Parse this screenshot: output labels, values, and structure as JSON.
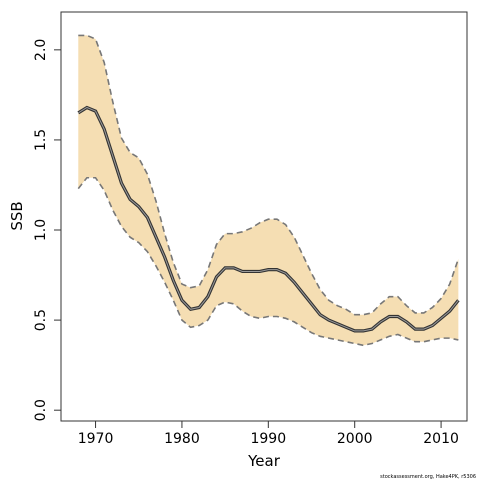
{
  "chart_data": {
    "type": "line",
    "title": "",
    "xlabel": "Year",
    "ylabel": "SSB",
    "xlim": [
      1966,
      2013
    ],
    "ylim": [
      -0.06,
      2.21
    ],
    "xticks": [
      1970,
      1980,
      1990,
      2000,
      2010
    ],
    "xtick_labels": [
      "1970",
      "1980",
      "1990",
      "2000",
      "2010"
    ],
    "yticks": [
      0.0,
      0.5,
      1.0,
      1.5,
      2.0
    ],
    "ytick_labels": [
      "0.0",
      "0.5",
      "1.0",
      "1.5",
      "2.0"
    ],
    "grid": false,
    "x": [
      1968,
      1969,
      1970,
      1971,
      1972,
      1973,
      1974,
      1975,
      1976,
      1977,
      1978,
      1979,
      1980,
      1981,
      1982,
      1983,
      1984,
      1985,
      1986,
      1987,
      1988,
      1989,
      1990,
      1991,
      1992,
      1993,
      1994,
      1995,
      1996,
      1997,
      1998,
      1999,
      2000,
      2001,
      2002,
      2003,
      2004,
      2005,
      2006,
      2007,
      2008,
      2009,
      2010,
      2011,
      2012
    ],
    "series": [
      {
        "role": "median",
        "color": "#333333",
        "values": [
          1.65,
          1.68,
          1.66,
          1.56,
          1.41,
          1.26,
          1.17,
          1.13,
          1.07,
          0.96,
          0.85,
          0.72,
          0.61,
          0.56,
          0.57,
          0.63,
          0.74,
          0.79,
          0.79,
          0.77,
          0.77,
          0.77,
          0.78,
          0.78,
          0.76,
          0.71,
          0.65,
          0.59,
          0.53,
          0.5,
          0.48,
          0.46,
          0.44,
          0.44,
          0.45,
          0.49,
          0.52,
          0.52,
          0.49,
          0.45,
          0.45,
          0.47,
          0.51,
          0.55,
          0.61
        ]
      },
      {
        "role": "upper",
        "color": "#777777",
        "values": [
          2.08,
          2.08,
          2.06,
          1.93,
          1.71,
          1.51,
          1.43,
          1.4,
          1.31,
          1.16,
          0.98,
          0.82,
          0.7,
          0.68,
          0.69,
          0.78,
          0.92,
          0.98,
          0.98,
          0.99,
          1.01,
          1.04,
          1.06,
          1.06,
          1.03,
          0.96,
          0.86,
          0.76,
          0.67,
          0.61,
          0.58,
          0.56,
          0.53,
          0.53,
          0.54,
          0.59,
          0.63,
          0.63,
          0.58,
          0.54,
          0.54,
          0.57,
          0.62,
          0.7,
          0.84
        ]
      },
      {
        "role": "lower",
        "color": "#777777",
        "values": [
          1.23,
          1.29,
          1.29,
          1.22,
          1.11,
          1.02,
          0.96,
          0.93,
          0.88,
          0.8,
          0.71,
          0.61,
          0.5,
          0.46,
          0.47,
          0.5,
          0.58,
          0.6,
          0.59,
          0.55,
          0.52,
          0.51,
          0.52,
          0.52,
          0.51,
          0.49,
          0.46,
          0.43,
          0.41,
          0.4,
          0.39,
          0.38,
          0.37,
          0.36,
          0.37,
          0.39,
          0.41,
          0.42,
          0.4,
          0.38,
          0.38,
          0.39,
          0.4,
          0.4,
          0.39
        ]
      }
    ],
    "band_color": "#f5deb3",
    "footnote": "stockassessment.org, Hake4PK, r5306"
  }
}
